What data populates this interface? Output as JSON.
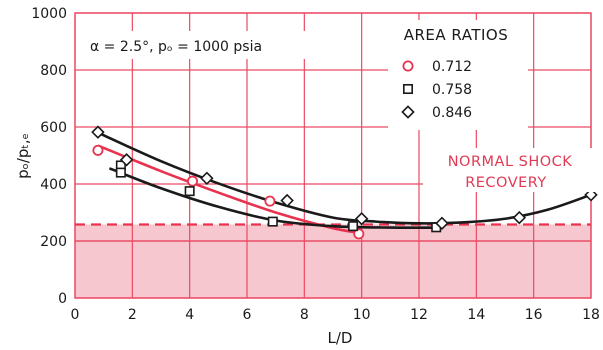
{
  "chart_data": {
    "type": "scatter",
    "xlabel": "L/D",
    "ylabel": "pₒ/pₜ,ₑ",
    "xlim": [
      0,
      18
    ],
    "ylim": [
      0,
      1000
    ],
    "x_ticks": [
      "0",
      "2",
      "4",
      "6",
      "8",
      "10",
      "12",
      "14",
      "16",
      "18"
    ],
    "y_ticks": [
      "0",
      "200",
      "400",
      "600",
      "800",
      "1000"
    ],
    "grid": true,
    "annotation": "α = 2.5°, pₒ = 1000 psia",
    "legend_title": "AREA RATIOS",
    "legend_position": "top-right",
    "colors": {
      "grid": "#ea4a63",
      "band": "#f6c7cf",
      "line_red": "#e8334f",
      "line_black": "#1a1a1a"
    },
    "series": [
      {
        "name": "0.712",
        "marker": "circle",
        "color": "#e8334f",
        "x": [
          0.8,
          4.1,
          6.8,
          9.9
        ],
        "y": [
          518,
          410,
          340,
          225
        ],
        "curve_x": [
          0.8,
          3,
          5,
          7,
          9,
          10
        ],
        "curve_y": [
          535,
          445,
          370,
          300,
          245,
          228
        ]
      },
      {
        "name": "0.758",
        "marker": "square",
        "color": "#1a1a1a",
        "x": [
          1.6,
          1.6,
          4.0,
          6.9,
          9.7,
          12.6
        ],
        "y": [
          465,
          440,
          375,
          268,
          252,
          248
        ],
        "curve_x": [
          1.2,
          3,
          5,
          7,
          9,
          11,
          12.6
        ],
        "curve_y": [
          455,
          385,
          320,
          272,
          252,
          247,
          247
        ]
      },
      {
        "name": "0.846",
        "marker": "diamond",
        "color": "#1a1a1a",
        "x": [
          0.8,
          1.8,
          4.6,
          7.4,
          10.0,
          12.8,
          15.5,
          18.0
        ],
        "y": [
          582,
          485,
          420,
          342,
          278,
          262,
          282,
          362
        ],
        "curve_x": [
          0.8,
          3,
          5,
          7,
          9,
          10.5,
          12,
          13.5,
          15,
          16.5,
          18
        ],
        "curve_y": [
          580,
          480,
          402,
          335,
          282,
          268,
          262,
          265,
          278,
          310,
          362
        ]
      }
    ],
    "normal_shock": {
      "label_line1": "NORMAL SHOCK",
      "label_line2": "RECOVERY",
      "value": 258
    }
  }
}
